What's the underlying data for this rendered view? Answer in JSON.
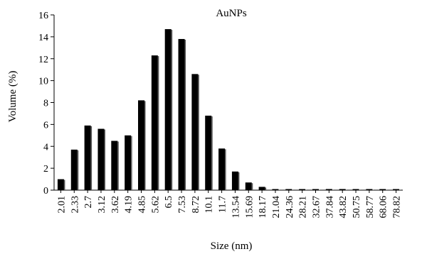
{
  "chart_data": {
    "type": "bar",
    "title": "AuNPs",
    "xlabel": "Size (nm)",
    "ylabel": "Volume (%)",
    "ylim": [
      0,
      16
    ],
    "yticks": [
      0,
      2,
      4,
      6,
      8,
      10,
      12,
      14,
      16
    ],
    "grid": false,
    "categories": [
      "2.01",
      "2.33",
      "2.7",
      "3.12",
      "3.62",
      "4.19",
      "4.85",
      "5.62",
      "6.5",
      "7.53",
      "8.72",
      "10.1",
      "11.7",
      "13.54",
      "15.69",
      "18.17",
      "21.04",
      "24.36",
      "28.21",
      "32.67",
      "37.84",
      "43.82",
      "50.75",
      "58.77",
      "68.06",
      "78.82"
    ],
    "values": [
      1.0,
      3.7,
      5.9,
      5.6,
      4.5,
      5.0,
      8.2,
      12.3,
      14.7,
      13.8,
      10.6,
      6.8,
      3.8,
      1.7,
      0.7,
      0.3,
      0.05,
      0.05,
      0.05,
      0.05,
      0.1,
      0.1,
      0.05,
      0.05,
      0.05,
      0.05
    ],
    "bar_color": "#000000"
  }
}
